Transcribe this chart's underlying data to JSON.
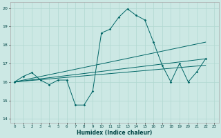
{
  "xlabel": "Humidex (Indice chaleur)",
  "bg_color": "#cce8e4",
  "grid_color": "#b0d8d0",
  "line_color": "#006666",
  "xlim": [
    -0.5,
    23.5
  ],
  "ylim": [
    13.8,
    20.3
  ],
  "yticks": [
    14,
    15,
    16,
    17,
    18,
    19,
    20
  ],
  "xticks": [
    0,
    1,
    2,
    3,
    4,
    5,
    6,
    7,
    8,
    9,
    10,
    11,
    12,
    13,
    14,
    15,
    16,
    17,
    18,
    19,
    20,
    21,
    22,
    23
  ],
  "series1_x": [
    0,
    1,
    2,
    3,
    4,
    5,
    6,
    7,
    8,
    9,
    10,
    11,
    12,
    13,
    14,
    15,
    16,
    17,
    18,
    19,
    20,
    21,
    22
  ],
  "series1_y": [
    16.0,
    16.3,
    16.5,
    16.1,
    15.85,
    16.1,
    16.1,
    14.75,
    14.75,
    15.5,
    18.65,
    18.85,
    19.5,
    19.95,
    19.6,
    19.35,
    18.15,
    16.9,
    16.0,
    17.0,
    16.0,
    16.55,
    17.25
  ],
  "trend1_x": [
    0,
    22
  ],
  "trend1_y": [
    16.0,
    18.15
  ],
  "trend2_x": [
    0,
    22
  ],
  "trend2_y": [
    16.0,
    17.25
  ],
  "trend3_x": [
    0,
    22
  ],
  "trend3_y": [
    16.0,
    16.9
  ]
}
